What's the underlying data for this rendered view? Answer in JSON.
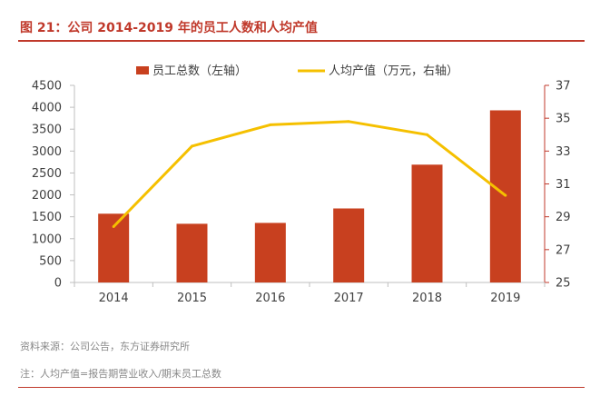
{
  "figure": {
    "title": "图 21：公司 2014-2019 年的员工人数和人均产值",
    "source": "资料来源：公司公告，东方证券研究所",
    "footnote": "注：人均产值=报告期营业收入/期末员工总数"
  },
  "colors": {
    "accent": "#c0392b",
    "bar": "#c8401f",
    "line": "#f5c000",
    "axis": "#bfbfbf",
    "text": "#404040"
  },
  "chart_data": {
    "type": "bar",
    "categories": [
      "2014",
      "2015",
      "2016",
      "2017",
      "2018",
      "2019"
    ],
    "series": [
      {
        "name": "员工总数（左轴）",
        "type": "bar",
        "axis": "left",
        "values": [
          1570,
          1340,
          1360,
          1690,
          2690,
          3930
        ]
      },
      {
        "name": "人均产值（万元，右轴）",
        "type": "line",
        "axis": "right",
        "values": [
          28.4,
          33.3,
          34.6,
          34.8,
          34.0,
          30.3
        ]
      }
    ],
    "y_left": {
      "min": 0,
      "max": 4500,
      "step": 500,
      "ticks": [
        "0",
        "500",
        "1000",
        "1500",
        "2000",
        "2500",
        "3000",
        "3500",
        "4000",
        "4500"
      ]
    },
    "y_right": {
      "min": 25,
      "max": 37,
      "step": 2,
      "ticks": [
        "25",
        "27",
        "29",
        "31",
        "33",
        "35",
        "37"
      ]
    },
    "legend": [
      {
        "label": "员工总数（左轴）",
        "kind": "bar"
      },
      {
        "label": "人均产值（万元，右轴）",
        "kind": "line"
      }
    ],
    "legend_position": "top-center",
    "grid": false
  }
}
